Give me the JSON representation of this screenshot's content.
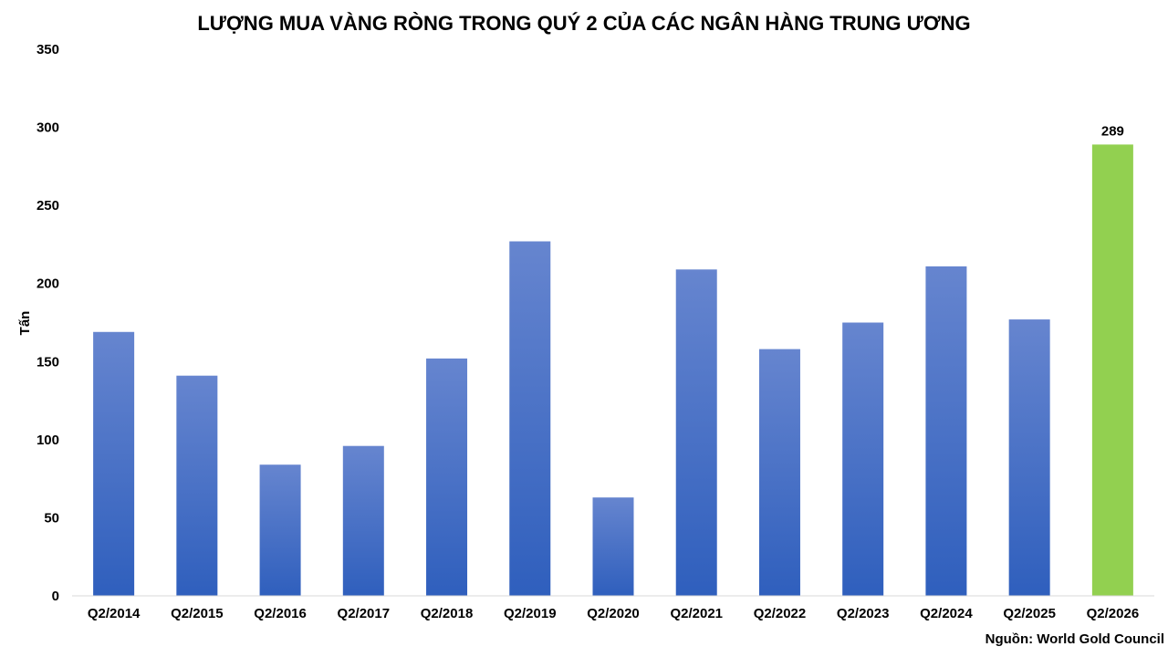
{
  "chart_data": {
    "type": "bar",
    "title": "LƯỢNG MUA VÀNG RÒNG TRONG QUÝ 2 CỦA CÁC NGÂN HÀNG TRUNG ƯƠNG",
    "xlabel": "",
    "ylabel": "Tấn",
    "ylim": [
      0,
      350
    ],
    "yticks": [
      "0",
      "50",
      "100",
      "150",
      "200",
      "250",
      "300",
      "350"
    ],
    "grid": false,
    "categories": [
      "Q2/2014",
      "Q2/2015",
      "Q2/2016",
      "Q2/2017",
      "Q2/2018",
      "Q2/2019",
      "Q2/2020",
      "Q2/2021",
      "Q2/2022",
      "Q2/2023",
      "Q2/2024",
      "Q2/2025",
      "Q2/2026"
    ],
    "values": [
      169,
      141,
      84,
      96,
      152,
      227,
      63,
      209,
      158,
      175,
      211,
      177,
      289
    ],
    "data_labels": [
      {
        "index": 12,
        "text": "289"
      }
    ],
    "colors": {
      "bar_top": "#6685cf",
      "bar_bottom": "#2f5fbd",
      "highlight": "#92d050",
      "axis": "#d9d9d9"
    },
    "highlight_index": 12,
    "source": "Nguồn: World Gold Council"
  }
}
